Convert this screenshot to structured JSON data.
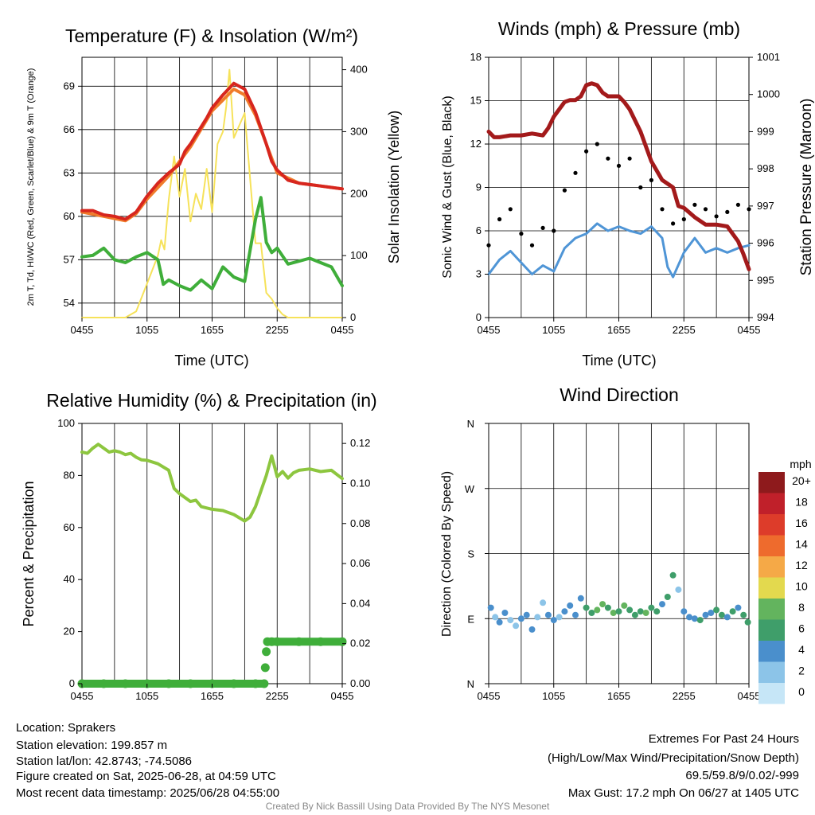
{
  "panels": {
    "temp": {
      "title": "Temperature (F) & Insolation (W/m²)",
      "y_left_label": "2m T, Td, HI/WC (Red, Green, Scarlet/Blue) & 9m T (Orange)",
      "y_left_ticks": [
        54,
        57,
        60,
        63,
        66,
        69
      ],
      "y_right_label": "Solar Insolation (Yellow)",
      "y_right_ticks": [
        0,
        100,
        200,
        300,
        400
      ],
      "xlabel": "Time (UTC)"
    },
    "wind": {
      "title": "Winds (mph) & Pressure (mb)",
      "y_left_label": "Sonic Wind & Gust (Blue, Black)",
      "y_left_ticks": [
        0,
        3,
        6,
        9,
        12,
        15,
        18
      ],
      "y_right_label": "Station Pressure (Maroon)",
      "y_right_ticks": [
        994,
        995,
        996,
        997,
        998,
        999,
        1000,
        1001
      ],
      "xlabel": "Time (UTC)"
    },
    "rh": {
      "title": "Relative Humidity (%) & Precipitation (in)",
      "y_left_label": "Percent & Precipitation",
      "y_left_ticks": [
        0,
        20,
        40,
        60,
        80,
        100
      ],
      "y_right_ticks": [
        "0.00",
        "0.02",
        "0.04",
        "0.06",
        "0.08",
        "0.10",
        "0.12"
      ]
    },
    "dir": {
      "title": "Wind Direction",
      "y_left_label": "Direction (Colored By Speed)",
      "y_ticks": [
        "N",
        "E",
        "S",
        "W",
        "N"
      ],
      "legend_title": "mph",
      "legend_labels": [
        "0",
        "2",
        "4",
        "6",
        "8",
        "10",
        "12",
        "14",
        "16",
        "18",
        "20+"
      ],
      "legend_colors": [
        "#c6e6f7",
        "#8cc4e8",
        "#4a8fcc",
        "#3f9e6a",
        "#63b45e",
        "#e3d94e",
        "#f5a947",
        "#ee6b2d",
        "#dd3c2a",
        "#c0202a",
        "#8e1a1c"
      ]
    }
  },
  "x_ticks": [
    "0455",
    "1055",
    "1655",
    "2255",
    "0455"
  ],
  "colors": {
    "temp": "#d7261e",
    "temp9m": "#f07b2b",
    "dewpoint": "#3fae3a",
    "solar": "#f6e25a",
    "wind": "#4f95d6",
    "gust": "#000000",
    "pressure": "#a31a1b",
    "rh": "#8dc63f",
    "precip": "#3fae3a"
  },
  "chart_data": [
    {
      "type": "line",
      "title": "Temperature (F) & Insolation (W/m²)",
      "xlabel": "Time (UTC)",
      "ylabel": "2m T, Td, HI/WC (Red, Green, Scarlet/Blue) & 9m T (Orange)",
      "y2label": "Solar Insolation (Yellow)",
      "xlim": [
        0,
        24
      ],
      "ylim": [
        53,
        71
      ],
      "y2lim": [
        0,
        420
      ],
      "series": [
        {
          "name": "2m T",
          "axis": "left",
          "x": [
            0,
            1,
            2,
            3,
            4,
            5,
            6,
            7,
            8,
            9,
            9.5,
            10,
            10.5,
            11,
            11.5,
            12,
            13,
            14,
            15,
            16,
            17,
            17.5,
            18,
            19,
            20,
            21,
            22,
            23,
            24
          ],
          "y": [
            60.4,
            60.4,
            60.1,
            60.0,
            59.8,
            60.3,
            61.4,
            62.3,
            63.0,
            63.6,
            64.5,
            65.0,
            65.6,
            66.2,
            66.8,
            67.5,
            68.4,
            69.2,
            68.8,
            67.2,
            65.0,
            63.8,
            63.2,
            62.5,
            62.3,
            62.2,
            62.1,
            62.0,
            61.9
          ]
        },
        {
          "name": "9m T",
          "axis": "left",
          "x": [
            0,
            2,
            4,
            5,
            6,
            8,
            10,
            12,
            14,
            15,
            16,
            18,
            20,
            22,
            24
          ],
          "y": [
            60.3,
            60.0,
            59.7,
            60.2,
            61.2,
            62.8,
            64.8,
            67.3,
            68.8,
            68.4,
            67.0,
            63.0,
            62.3,
            62.1,
            61.9
          ]
        },
        {
          "name": "2m Td",
          "axis": "left",
          "x": [
            0,
            1,
            2,
            3,
            4,
            5,
            6,
            7,
            7.5,
            8,
            9,
            10,
            11,
            12,
            13,
            14,
            15,
            16,
            16.5,
            17,
            17.5,
            18,
            19,
            20,
            21,
            22,
            23,
            24
          ],
          "y": [
            57.2,
            57.3,
            57.8,
            57.0,
            56.8,
            57.2,
            57.5,
            57.0,
            55.3,
            55.6,
            55.2,
            54.9,
            55.6,
            55.0,
            56.5,
            55.8,
            55.5,
            59.8,
            61.3,
            58.2,
            57.5,
            57.8,
            56.7,
            56.9,
            57.1,
            56.8,
            56.5,
            55.2
          ]
        },
        {
          "name": "Solar",
          "axis": "right",
          "x": [
            0,
            2,
            4,
            5,
            6,
            7,
            7.3,
            7.6,
            8,
            8.5,
            9,
            9.5,
            10,
            10.5,
            11,
            11.5,
            12,
            12.5,
            13,
            13.3,
            13.6,
            14,
            15,
            16,
            16.5,
            17,
            17.5,
            18,
            18.5,
            19,
            20,
            24
          ],
          "y": [
            0,
            0,
            0,
            10,
            55,
            100,
            125,
            110,
            190,
            260,
            195,
            240,
            155,
            200,
            175,
            240,
            170,
            280,
            300,
            340,
            400,
            290,
            330,
            120,
            120,
            40,
            30,
            15,
            5,
            0,
            0,
            0
          ]
        }
      ]
    },
    {
      "type": "line",
      "title": "Winds (mph) & Pressure (mb)",
      "xlabel": "Time (UTC)",
      "ylabel": "Sonic Wind & Gust (Blue, Black)",
      "y2label": "Station Pressure (Maroon)",
      "xlim": [
        0,
        24
      ],
      "ylim": [
        0,
        18
      ],
      "y2lim": [
        994,
        1001
      ],
      "series": [
        {
          "name": "Sonic Wind",
          "axis": "left",
          "x": [
            0,
            1,
            2,
            3,
            4,
            5,
            6,
            7,
            8,
            9,
            10,
            11,
            12,
            13,
            14,
            15,
            16,
            16.5,
            17,
            18,
            19,
            20,
            21,
            22,
            23,
            24
          ],
          "y": [
            3.0,
            4.0,
            4.6,
            3.8,
            3.0,
            3.6,
            3.2,
            4.8,
            5.5,
            5.8,
            6.5,
            6.0,
            6.3,
            6.0,
            5.8,
            6.3,
            5.5,
            3.5,
            2.8,
            4.5,
            5.5,
            4.5,
            4.8,
            4.5,
            4.8,
            5.0
          ]
        },
        {
          "name": "Gust",
          "axis": "left",
          "x": [
            0,
            1,
            2,
            3,
            4,
            5,
            6,
            7,
            8,
            9,
            10,
            11,
            12,
            13,
            14,
            15,
            16,
            17,
            18,
            19,
            20,
            21,
            22,
            23,
            24
          ],
          "y": [
            5.0,
            6.8,
            7.5,
            5.8,
            5.0,
            6.2,
            6.0,
            8.8,
            10.0,
            11.5,
            12.0,
            11.0,
            10.5,
            11.0,
            9.0,
            9.5,
            7.5,
            6.5,
            6.8,
            7.8,
            7.5,
            7.0,
            7.3,
            7.8,
            7.5
          ]
        },
        {
          "name": "Pressure",
          "axis": "right",
          "x": [
            0,
            0.5,
            1,
            2,
            3,
            4,
            5,
            5.5,
            6,
            6.5,
            7,
            7.5,
            8,
            8.5,
            9,
            9.5,
            10,
            10.5,
            11,
            12,
            12.5,
            13,
            14,
            14.5,
            15,
            16,
            17,
            17.5,
            18,
            19,
            20,
            21,
            22,
            23,
            23.5,
            24
          ],
          "y": [
            999.0,
            998.85,
            998.85,
            998.9,
            998.9,
            998.95,
            998.9,
            999.1,
            999.4,
            999.6,
            999.8,
            999.85,
            999.85,
            999.95,
            1000.25,
            1000.3,
            1000.25,
            1000.05,
            999.95,
            999.95,
            999.8,
            999.6,
            999.0,
            998.6,
            998.2,
            997.7,
            997.5,
            997.0,
            996.95,
            996.7,
            996.5,
            996.5,
            996.45,
            996.05,
            995.7,
            995.3
          ]
        }
      ]
    },
    {
      "type": "line",
      "title": "Relative Humidity (%) & Precipitation (in)",
      "ylabel": "Percent & Precipitation",
      "xlim": [
        0,
        24
      ],
      "ylim": [
        0,
        100
      ],
      "y2lim": [
        0,
        0.13
      ],
      "series": [
        {
          "name": "Relative Humidity",
          "axis": "left",
          "x": [
            0,
            0.5,
            1,
            1.5,
            2,
            2.5,
            3,
            3.5,
            4,
            4.5,
            5,
            5.5,
            6,
            7,
            8,
            8.5,
            9,
            10,
            10.5,
            11,
            12,
            13,
            14,
            15,
            15.5,
            16,
            16.5,
            17,
            17.5,
            18,
            18.5,
            19,
            19.5,
            20,
            21,
            22,
            23,
            24
          ],
          "y": [
            89,
            88.5,
            90.5,
            92,
            90.5,
            89,
            89.5,
            89,
            88,
            88.5,
            87,
            86,
            85.8,
            84.5,
            82,
            75,
            73,
            70,
            70.5,
            68,
            67,
            66.5,
            65,
            62.5,
            64,
            68,
            74,
            80,
            87.5,
            79.5,
            81.5,
            79,
            81,
            82,
            82.5,
            81.5,
            82,
            78.8
          ]
        },
        {
          "name": "Precipitation",
          "axis": "right",
          "x": [
            0,
            2,
            4,
            6,
            8,
            10,
            12,
            14,
            16,
            16.8,
            16.9,
            17.0,
            17.1,
            17.5,
            18,
            20,
            22,
            24
          ],
          "y": [
            0,
            0,
            0,
            0,
            0,
            0,
            0,
            0,
            0,
            0,
            0.008,
            0.016,
            0.021,
            0.021,
            0.021,
            0.021,
            0.021,
            0.021
          ]
        }
      ]
    },
    {
      "type": "scatter",
      "title": "Wind Direction",
      "ylabel": "Direction (Colored By Speed)",
      "xlim": [
        0,
        24
      ],
      "ylim": [
        0,
        360
      ],
      "series": [
        {
          "name": "Direction",
          "x": [
            0.2,
            0.6,
            1.0,
            1.5,
            2.0,
            2.5,
            3.0,
            3.5,
            4.0,
            4.5,
            5.0,
            5.5,
            6.0,
            6.5,
            7.0,
            7.5,
            8.0,
            8.5,
            9.0,
            9.5,
            10.0,
            10.5,
            11.0,
            11.5,
            12.0,
            12.5,
            13.0,
            13.5,
            14.0,
            14.5,
            15.0,
            15.5,
            16.0,
            16.5,
            17.0,
            17.5,
            18.0,
            18.5,
            19.0,
            19.5,
            20.0,
            20.5,
            21.0,
            21.5,
            22.0,
            22.5,
            23.0,
            23.5,
            23.9
          ],
          "y": [
            105,
            92,
            85,
            98,
            88,
            80,
            90,
            95,
            75,
            92,
            112,
            95,
            88,
            92,
            100,
            108,
            95,
            118,
            105,
            98,
            102,
            110,
            105,
            98,
            100,
            108,
            102,
            95,
            100,
            98,
            105,
            100,
            110,
            120,
            150,
            130,
            100,
            92,
            90,
            88,
            95,
            98,
            102,
            95,
            92,
            100,
            105,
            95,
            85
          ],
          "speed": [
            3,
            2,
            4,
            3,
            2,
            2,
            4,
            3,
            4,
            2,
            2,
            3,
            4,
            2,
            3,
            4,
            4,
            3,
            5,
            6,
            8,
            7,
            6,
            7,
            5,
            8,
            6,
            5,
            6,
            7,
            5,
            6,
            3,
            5,
            6,
            2,
            3,
            4,
            4,
            6,
            3,
            4,
            5,
            6,
            4,
            5,
            4,
            6,
            6
          ]
        }
      ]
    }
  ],
  "info": {
    "location": "Location: Sprakers",
    "elevation": "Station elevation: 199.857 m",
    "latlon": "Station lat/lon: 42.8743; -74.5086",
    "created": "Figure created on Sat, 2025-06-28, at 04:59 UTC",
    "recent": "Most recent data timestamp: 2025/06/28 04:55:00"
  },
  "extremes": {
    "heading": "Extremes For Past 24 Hours",
    "subheading": "(High/Low/Max Wind/Precipitation/Snow Depth)",
    "values": "69.5/59.8/9/0.02/-999",
    "gust": "Max Gust: 17.2 mph On 06/27 at 1405 UTC"
  },
  "credit": "Created By Nick Bassill Using Data Provided By The NYS Mesonet"
}
